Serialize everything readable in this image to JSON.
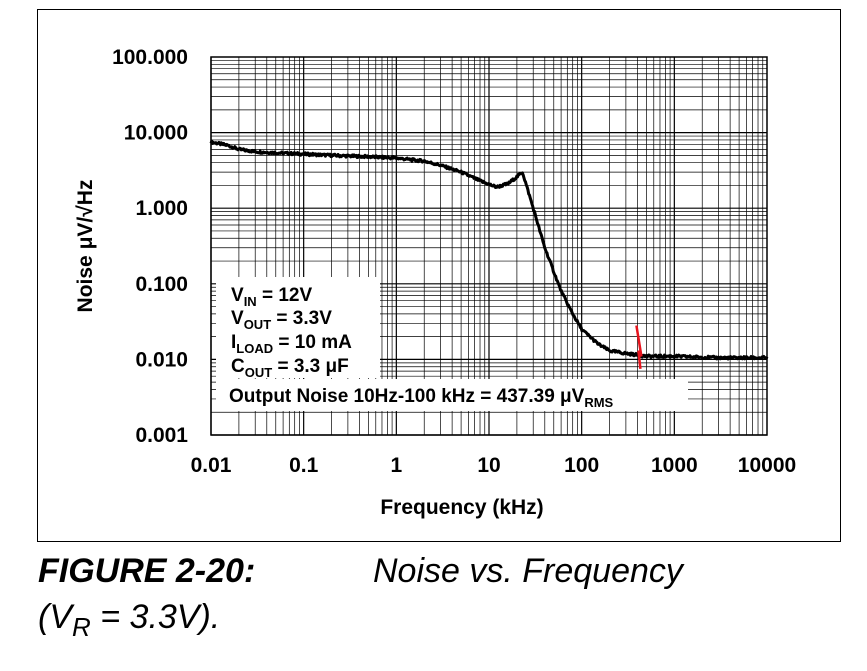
{
  "chart_data": {
    "type": "line",
    "scale": {
      "x": "log",
      "y": "log"
    },
    "xlabel": "Frequency (kHz)",
    "ylabel": "Noise μV/√Hz",
    "xlim": [
      0.01,
      10000
    ],
    "ylim": [
      0.001,
      100
    ],
    "x_ticks": [
      "0.01",
      "0.1",
      "1",
      "10",
      "100",
      "1000",
      "10000"
    ],
    "y_ticks": [
      "100.000",
      "10.000",
      "1.000",
      "0.100",
      "0.010",
      "0.001"
    ],
    "grid": true,
    "series": [
      {
        "color": "#000000",
        "x": [
          0.01,
          0.015,
          0.02,
          0.03,
          0.05,
          0.1,
          0.2,
          0.5,
          1,
          2,
          3,
          5,
          8,
          12,
          16,
          20,
          23,
          30,
          40,
          60,
          80,
          100,
          150,
          200,
          300,
          500,
          1000,
          3000,
          10000
        ],
        "y": [
          7.5,
          6.8,
          6.0,
          5.6,
          5.4,
          5.2,
          5.0,
          4.8,
          4.6,
          4.2,
          3.7,
          3.0,
          2.3,
          1.9,
          2.1,
          2.6,
          3.0,
          1.0,
          0.3,
          0.08,
          0.04,
          0.025,
          0.016,
          0.013,
          0.012,
          0.011,
          0.011,
          0.0105,
          0.0105
        ]
      }
    ],
    "marker": {
      "x": 420,
      "color": "#e8141d"
    },
    "annotations": {
      "vin": {
        "sym": "V",
        "sub": "IN",
        "rest": " = 12V"
      },
      "vout": {
        "sym": "V",
        "sub": "OUT",
        "rest": " = 3.3V"
      },
      "iload": {
        "sym": "I",
        "sub": "LOAD",
        "rest": " = 10 mA"
      },
      "cout": {
        "sym": "C",
        "sub": "OUT",
        "rest": " = 3.3 μF"
      },
      "noise": {
        "text": "Output Noise 10Hz-100 kHz = 437.39 μV",
        "sub": "RMS"
      }
    }
  },
  "caption": {
    "figure_number": "FIGURE 2-20:",
    "title": "Noise vs. Frequency",
    "line2_pre": "(V",
    "line2_sub": "R",
    "line2_post": " = 3.3V)."
  }
}
